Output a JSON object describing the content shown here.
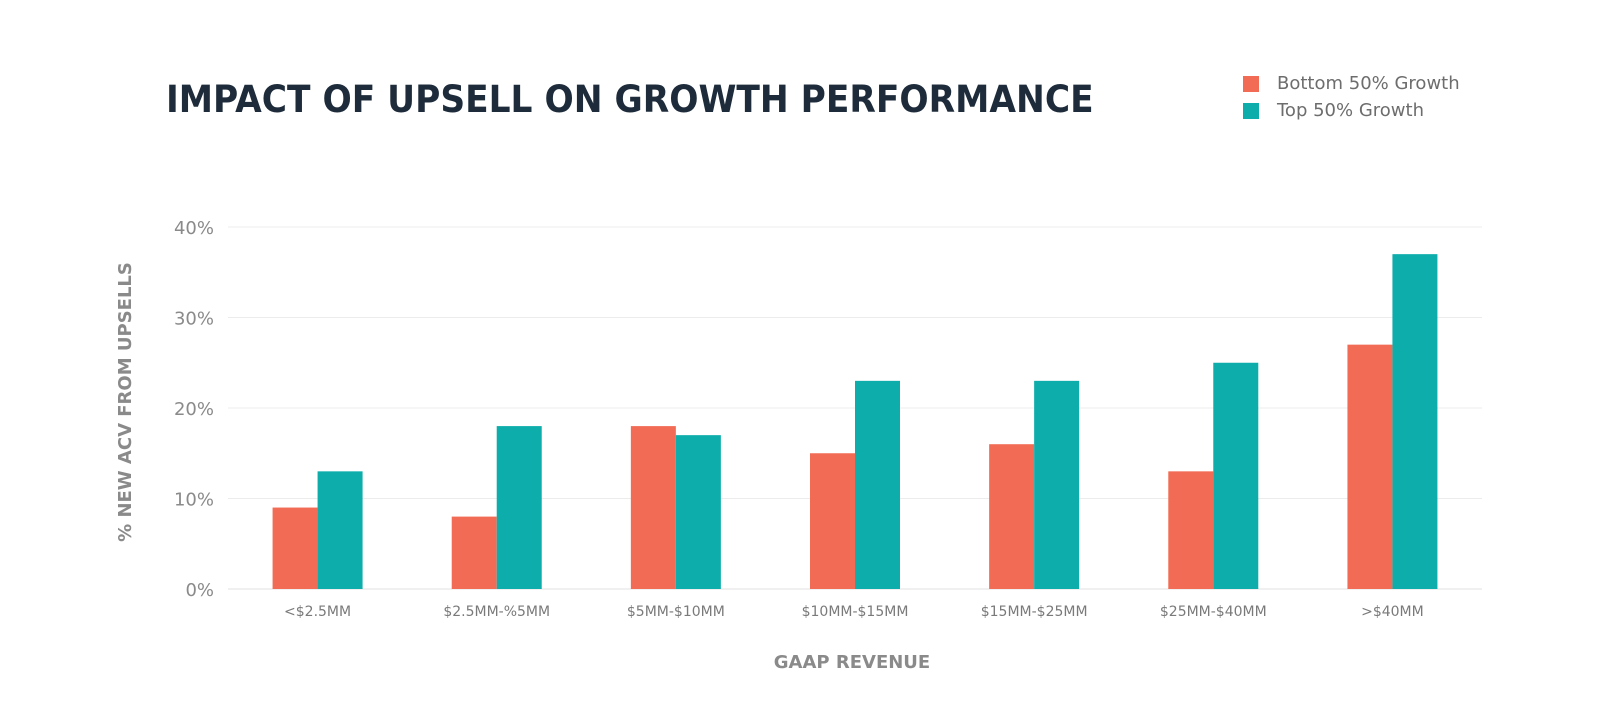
{
  "chart_data": {
    "type": "bar",
    "title": "IMPACT OF UPSELL ON GROWTH PERFORMANCE",
    "xlabel": "GAAP REVENUE",
    "ylabel": "% NEW ACV FROM UPSELLS",
    "ylim": [
      0,
      40
    ],
    "yticks": [
      0,
      10,
      20,
      30,
      40
    ],
    "ytick_labels": [
      "0%",
      "10%",
      "20%",
      "30%",
      "40%"
    ],
    "grid": true,
    "legend_position": "top-right",
    "categories": [
      "<$2.5MM",
      "$2.5MM-%5MM",
      "$5MM-$10MM",
      "$10MM-$15MM",
      "$15MM-$25MM",
      "$25MM-$40MM",
      ">$40MM"
    ],
    "series": [
      {
        "name": "Bottom 50% Growth",
        "color": "#f26c55",
        "values": [
          9,
          8,
          18,
          15,
          16,
          13,
          27
        ]
      },
      {
        "name": "Top 50% Growth",
        "color": "#0cadaa",
        "values": [
          13,
          18,
          17,
          23,
          23,
          25,
          37
        ]
      }
    ]
  }
}
